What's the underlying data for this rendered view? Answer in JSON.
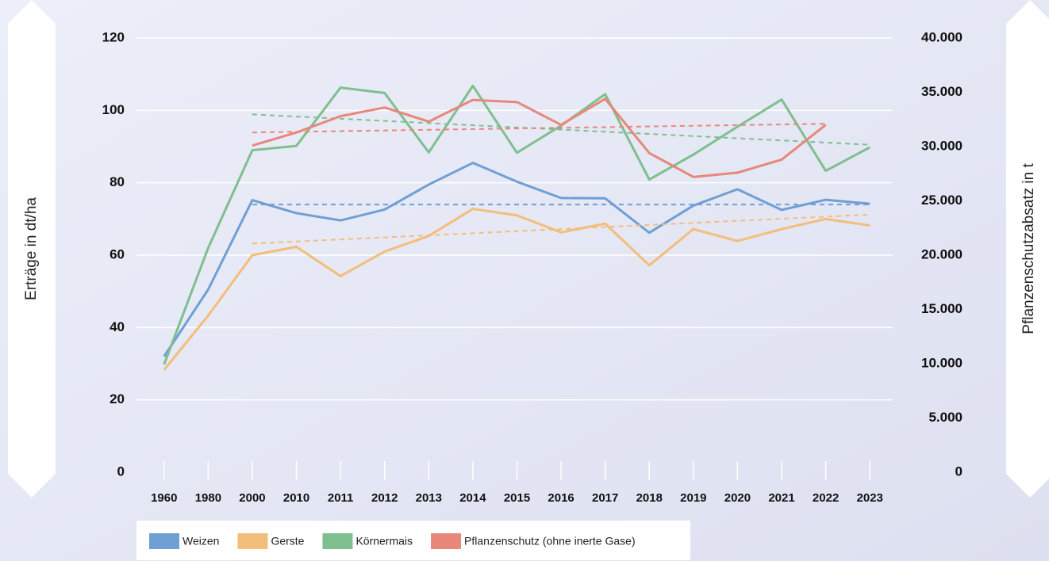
{
  "chart_data": {
    "type": "line",
    "categories": [
      "1960",
      "1980",
      "2000",
      "2010",
      "2011",
      "2012",
      "2013",
      "2014",
      "2015",
      "2016",
      "2017",
      "2018",
      "2019",
      "2020",
      "2021",
      "2022",
      "2023"
    ],
    "ylabel": "Erträge in dt/ha",
    "y2label": "Pflanzenschutzabsatz in t",
    "ylim": [
      0,
      120
    ],
    "yticks": [
      0,
      20,
      40,
      60,
      80,
      100,
      120
    ],
    "y2lim": [
      0,
      40000
    ],
    "y2ticks": [
      0,
      {
        "value": 5000,
        "label": "5.000"
      },
      {
        "value": 10000,
        "label": "10.000"
      },
      {
        "value": 15000,
        "label": "15.000"
      },
      {
        "value": 20000,
        "label": "20.000"
      },
      {
        "value": 25000,
        "label": "25.000"
      },
      {
        "value": 30000,
        "label": "30.000"
      },
      {
        "value": 35000,
        "label": "35.000"
      },
      {
        "value": 40000,
        "label": "40.000"
      }
    ],
    "grid": true,
    "legend": "bottom",
    "series": [
      {
        "name": "Weizen",
        "color": "#6f9fd4",
        "values": [
          32,
          50.5,
          75.2,
          71.6,
          69.6,
          72.6,
          79.5,
          85.5,
          80.3,
          75.8,
          75.7,
          66.2,
          73.7,
          78.2,
          72.5,
          75.3,
          74.2
        ],
        "trend": [
          74,
          74
        ]
      },
      {
        "name": "Gerste",
        "color": "#f3bd7a",
        "values": [
          28.3,
          43.3,
          60,
          62.3,
          54.2,
          61,
          65.3,
          72.8,
          71,
          66.3,
          68.7,
          57.2,
          67.2,
          63.9,
          67.2,
          70,
          68.2
        ],
        "trend": [
          63.2,
          71.2
        ]
      },
      {
        "name": "Körnermais",
        "color": "#7fbf8f",
        "values": [
          29.8,
          62,
          89,
          90.2,
          106.3,
          104.8,
          88.4,
          106.8,
          88.3,
          95.8,
          104.5,
          80.9,
          87.8,
          95.5,
          103,
          83.3,
          89.8
        ],
        "trend": [
          98.9,
          90.5
        ]
      },
      {
        "name": "Pflanzenschutz (ohne inerte Gase)",
        "color": "#e8877a",
        "axis": "y2",
        "values": [
          null,
          null,
          30100,
          31300,
          32800,
          33600,
          32300,
          34300,
          34100,
          32000,
          34400,
          29400,
          27200,
          27600,
          28800,
          32000,
          null
        ],
        "trend": [
          31300,
          32100
        ]
      }
    ]
  }
}
